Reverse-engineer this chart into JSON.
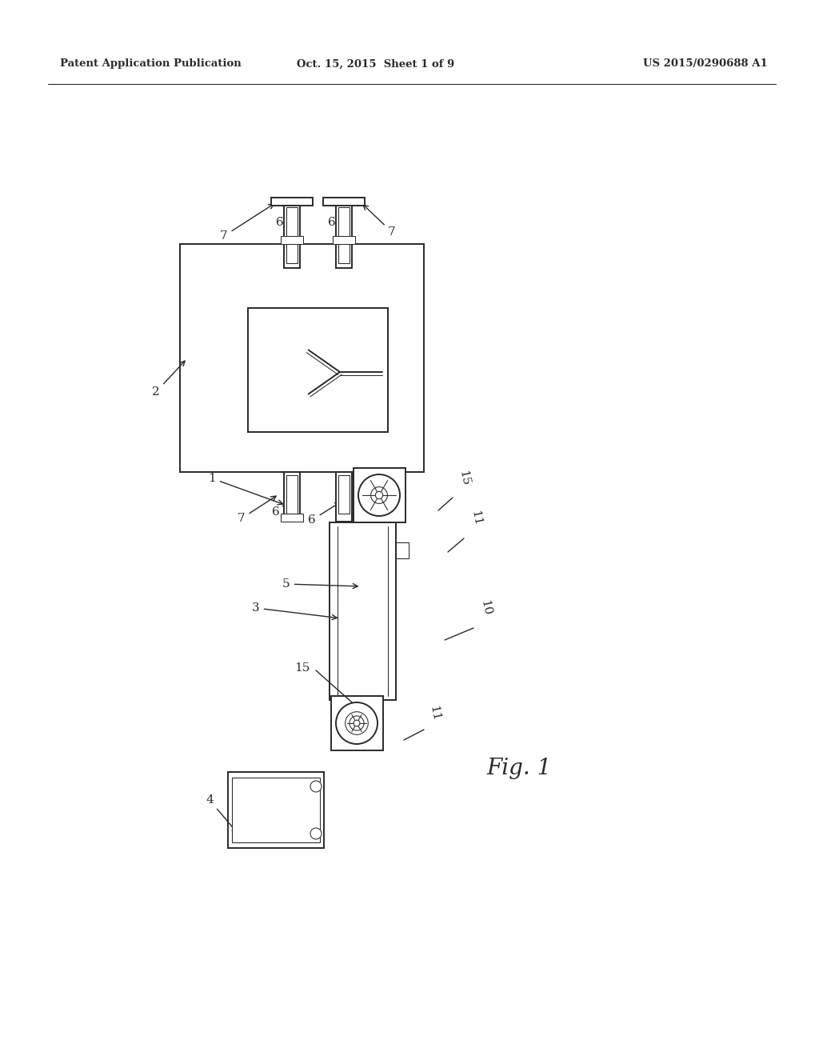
{
  "bg_color": "#ffffff",
  "line_color": "#2a2a2a",
  "header_left": "Patent Application Publication",
  "header_mid": "Oct. 15, 2015  Sheet 1 of 9",
  "header_right": "US 2015/0290688 A1",
  "fig_label": "Fig. 1",
  "lw_main": 1.4,
  "lw_thin": 0.75
}
